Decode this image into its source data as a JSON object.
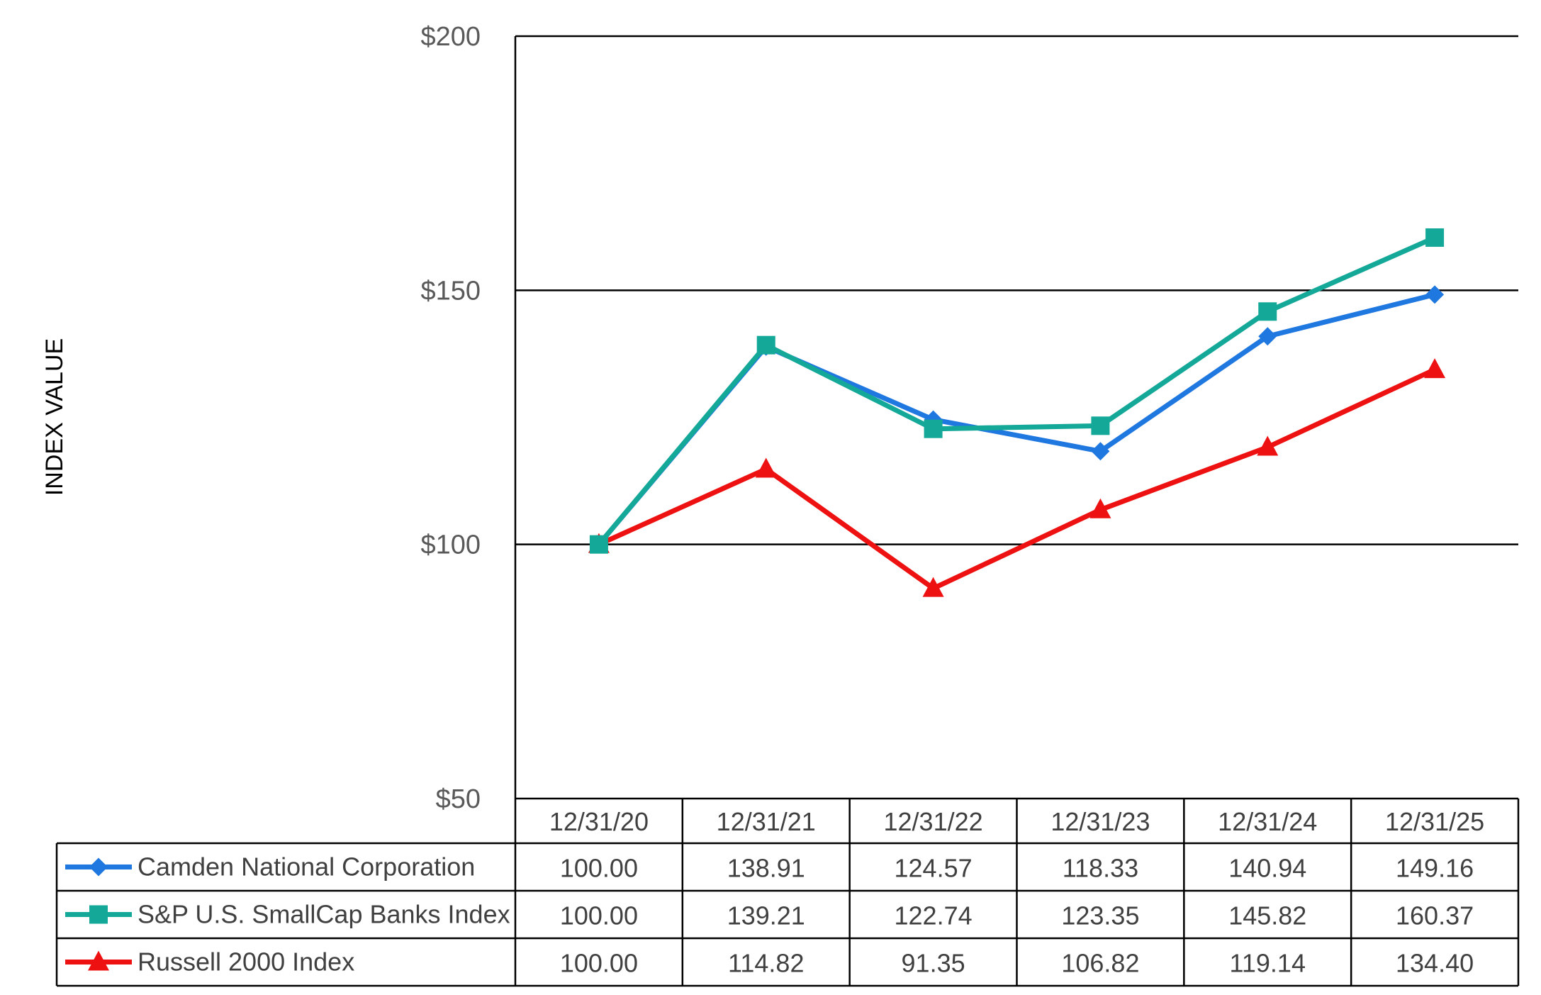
{
  "chart_data": {
    "type": "line",
    "ylabel": "INDEX VALUE",
    "ylim": [
      50,
      200
    ],
    "yticks": [
      50,
      100,
      150,
      200
    ],
    "ytick_labels": [
      "$50",
      "$100",
      "$150",
      "$200"
    ],
    "grid": true,
    "legend": "data table below chart",
    "categories": [
      "12/31/20",
      "12/31/21",
      "12/31/22",
      "12/31/23",
      "12/31/24",
      "12/31/25"
    ],
    "series": [
      {
        "name": "Camden National Corporation",
        "color": "#1F77E0",
        "marker": "diamond",
        "values": [
          100.0,
          138.91,
          124.57,
          118.33,
          140.94,
          149.16
        ],
        "labels": [
          "100.00",
          "138.91",
          "124.57",
          "118.33",
          "140.94",
          "149.16"
        ]
      },
      {
        "name": "S&P U.S. SmallCap Banks Index",
        "color": "#14A898",
        "marker": "square",
        "values": [
          100.0,
          139.21,
          122.74,
          123.35,
          145.82,
          160.37
        ],
        "labels": [
          "100.00",
          "139.21",
          "122.74",
          "123.35",
          "145.82",
          "160.37"
        ]
      },
      {
        "name": "Russell 2000 Index",
        "color": "#EE1111",
        "marker": "triangle",
        "values": [
          100.0,
          114.82,
          91.35,
          106.82,
          119.14,
          134.4
        ],
        "labels": [
          "100.00",
          "114.82",
          "91.35",
          "106.82",
          "119.14",
          "134.40"
        ]
      }
    ]
  }
}
